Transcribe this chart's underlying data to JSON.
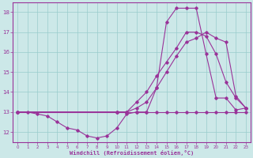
{
  "xlabel": "Windchill (Refroidissement éolien,°C)",
  "bg_color": "#cce8e8",
  "grid_color": "#99cccc",
  "line_color": "#993399",
  "x_ticks": [
    0,
    1,
    2,
    3,
    4,
    5,
    6,
    7,
    8,
    9,
    10,
    11,
    12,
    13,
    14,
    15,
    16,
    17,
    18,
    19,
    20,
    21,
    22,
    23
  ],
  "y_ticks": [
    12,
    13,
    14,
    15,
    16,
    17,
    18
  ],
  "xlim": [
    -0.5,
    23.5
  ],
  "ylim": [
    11.5,
    18.5
  ],
  "lines": [
    {
      "x": [
        0,
        10,
        11,
        12,
        13,
        14,
        15,
        16,
        17,
        18,
        19,
        20,
        21,
        22,
        23
      ],
      "y": [
        13,
        13,
        13,
        13,
        13,
        13,
        13,
        13,
        13,
        13,
        13,
        13,
        13,
        13,
        13
      ]
    },
    {
      "x": [
        0,
        1,
        2,
        3,
        4,
        5,
        6,
        7,
        8,
        9,
        10,
        11,
        12,
        13,
        14,
        15,
        16,
        17,
        18,
        19,
        20,
        21,
        22,
        23
      ],
      "y": [
        13,
        13,
        12.9,
        12.8,
        12.5,
        12.2,
        12.1,
        11.8,
        11.7,
        11.8,
        12.2,
        12.9,
        13.0,
        13.0,
        14.2,
        17.5,
        18.2,
        18.2,
        18.2,
        15.9,
        13.7,
        13.7,
        13.1,
        13.2
      ]
    },
    {
      "x": [
        0,
        10,
        11,
        12,
        13,
        14,
        15,
        16,
        17,
        18,
        19,
        20,
        21,
        22,
        23
      ],
      "y": [
        13,
        13,
        13,
        13.2,
        13.5,
        14.2,
        15.0,
        15.8,
        16.5,
        16.7,
        17.0,
        16.7,
        16.5,
        13.8,
        13.2
      ]
    },
    {
      "x": [
        0,
        10,
        11,
        12,
        13,
        14,
        15,
        16,
        17,
        18,
        19,
        20,
        21,
        22,
        23
      ],
      "y": [
        13,
        13,
        13,
        13.5,
        14.0,
        14.8,
        15.5,
        16.2,
        17.0,
        17.0,
        16.8,
        15.9,
        14.5,
        13.7,
        13.2
      ]
    }
  ]
}
